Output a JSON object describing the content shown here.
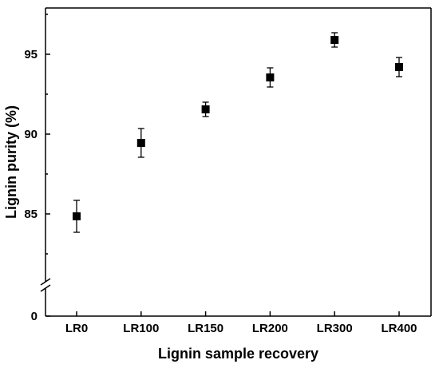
{
  "chart_data": {
    "type": "scatter",
    "xlabel": "Lignin sample recovery",
    "ylabel": "Lignin purity (%)",
    "categories": [
      "LR0",
      "LR100",
      "LR150",
      "LR200",
      "LR300",
      "LR400"
    ],
    "values": [
      84.85,
      89.45,
      91.55,
      93.55,
      95.9,
      94.2
    ],
    "error": [
      1.0,
      0.9,
      0.45,
      0.6,
      0.45,
      0.6
    ],
    "y_ticks": [
      0,
      85,
      90,
      95
    ],
    "y_tick_labels": [
      "0",
      "85",
      "90",
      "95"
    ],
    "axis_break": true,
    "grid": false,
    "legend": "none",
    "marker": "square",
    "color": "#000000"
  }
}
